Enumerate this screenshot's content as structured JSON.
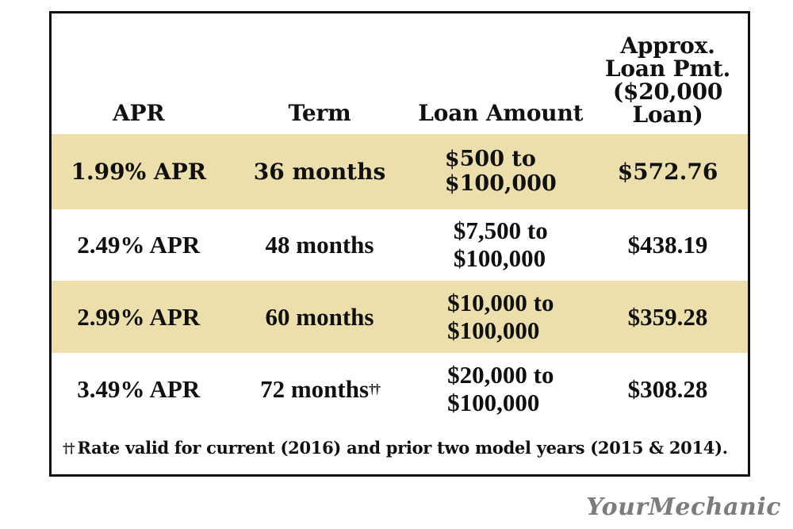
{
  "table": {
    "headers": {
      "apr": "APR",
      "term": "Term",
      "loan_amount": "Loan Amount",
      "payment_lines": [
        "Approx.",
        "Loan Pmt.",
        "($20,000",
        "Loan)"
      ]
    },
    "rows": [
      {
        "apr": "1.99% APR",
        "term": "36 months",
        "term_marker": "",
        "amount_line1": "$500 to",
        "amount_line2": "$100,000",
        "payment": "$572.76",
        "highlighted": true
      },
      {
        "apr": "2.49% APR",
        "term": "48 months",
        "term_marker": "",
        "amount_line1": "$7,500 to",
        "amount_line2": "$100,000",
        "payment": "$438.19",
        "highlighted": false
      },
      {
        "apr": "2.99% APR",
        "term": "60 months",
        "term_marker": "",
        "amount_line1": "$10,000 to",
        "amount_line2": "$100,000",
        "payment": "$359.28",
        "highlighted": true
      },
      {
        "apr": "3.49% APR",
        "term": "72 months",
        "term_marker": "††",
        "amount_line1": "$20,000 to",
        "amount_line2": "$100,000",
        "payment": "$308.28",
        "highlighted": false
      }
    ],
    "footnote_marker": "††",
    "footnote_text": "Rate valid for current (2016) and prior two model years (2015 & 2014)."
  },
  "watermark": "YourMechanic",
  "colors": {
    "highlight_row": "#ECDFAB",
    "border": "#101010",
    "text": "#101010",
    "watermark_gray": "#7C7C7C"
  },
  "chart_data": {
    "type": "table",
    "title": "Auto loan rates by term",
    "columns": [
      "APR",
      "Term",
      "Loan Amount",
      "Approx. Loan Pmt. ($20,000 Loan)"
    ],
    "rows": [
      [
        "1.99% APR",
        "36 months",
        "$500 to $100,000",
        "$572.76"
      ],
      [
        "2.49% APR",
        "48 months",
        "$7,500 to $100,000",
        "$438.19"
      ],
      [
        "2.99% APR",
        "60 months",
        "$10,000 to $100,000",
        "$359.28"
      ],
      [
        "3.49% APR",
        "72 months††",
        "$20,000 to $100,000",
        "$308.28"
      ]
    ],
    "footnote": "†† Rate valid for current (2016) and prior two model years (2015 & 2014).",
    "layout_hints": {
      "highlighted_rows": [
        0,
        2
      ],
      "highlight_color": "#ECDFAB"
    }
  }
}
